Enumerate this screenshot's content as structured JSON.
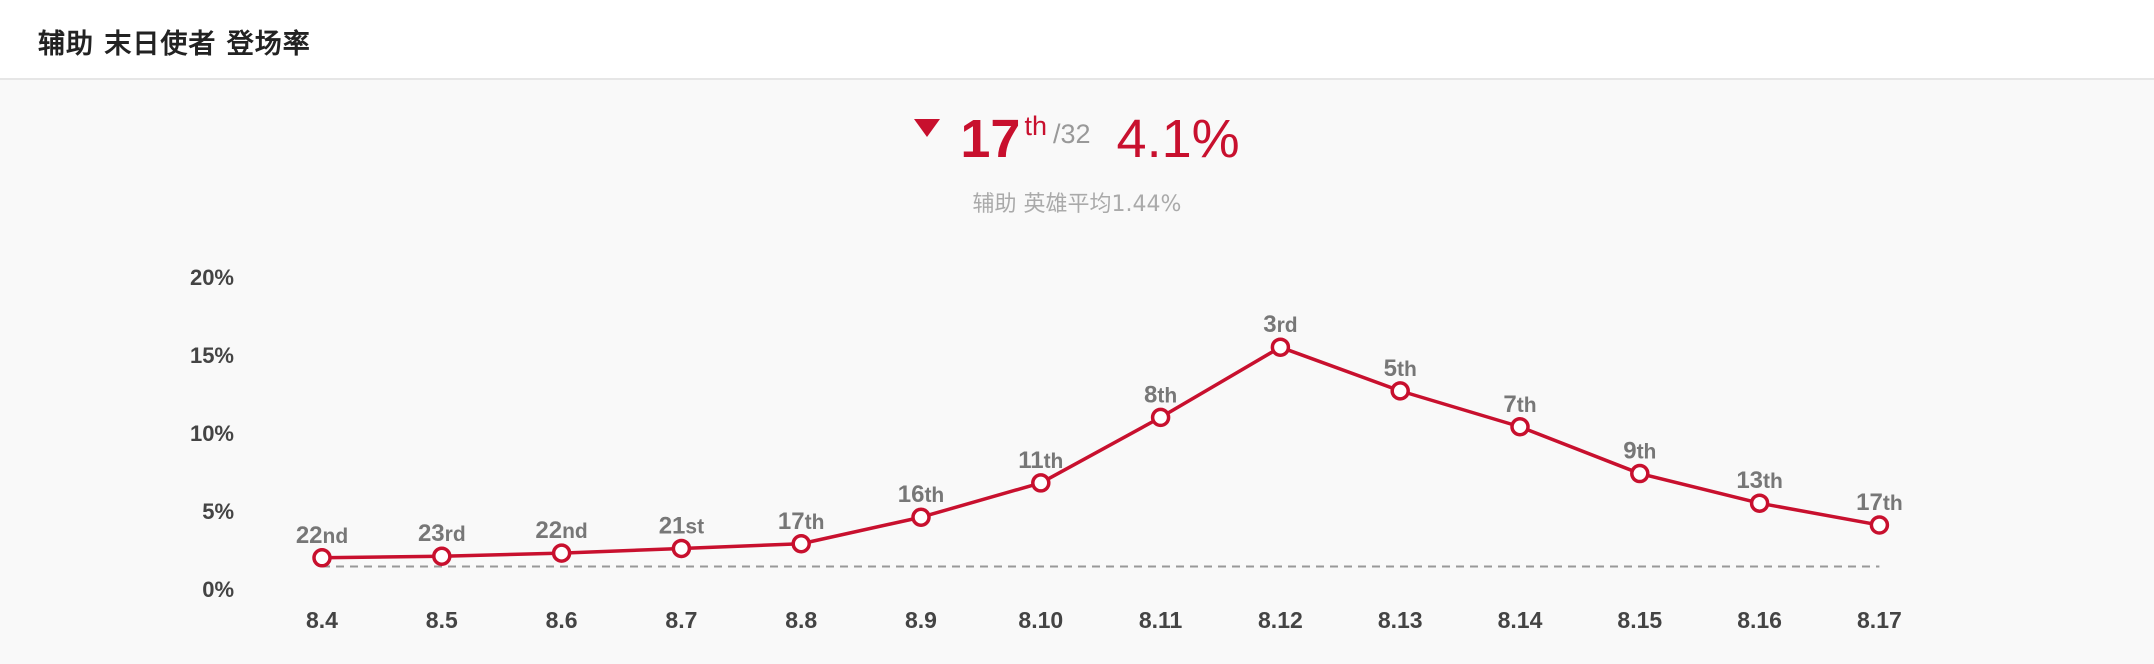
{
  "header": {
    "title": "辅助 末日使者 登场率"
  },
  "summary": {
    "trend_icon": "down-triangle-icon",
    "rank": "17",
    "rank_suffix": "th",
    "rank_total": "/32",
    "rate": "4.1%",
    "average_text": "辅助 英雄平均1.44%"
  },
  "colors": {
    "accent": "#c8102e",
    "avg_line": "#999999",
    "label": "#777777"
  },
  "chart_data": {
    "type": "line",
    "title": "",
    "xlabel": "",
    "ylabel": "",
    "categories": [
      "8.4",
      "8.5",
      "8.6",
      "8.7",
      "8.8",
      "8.9",
      "8.10",
      "8.11",
      "8.12",
      "8.13",
      "8.14",
      "8.15",
      "8.16",
      "8.17"
    ],
    "ylim": [
      0,
      20
    ],
    "yticks": [
      {
        "value": 0,
        "label": "0%"
      },
      {
        "value": 5,
        "label": "5%"
      },
      {
        "value": 10,
        "label": "10%"
      },
      {
        "value": 15,
        "label": "15%"
      },
      {
        "value": 20,
        "label": "20%"
      }
    ],
    "grid": false,
    "legend": false,
    "average": 1.44,
    "series": [
      {
        "values": [
          2.0,
          2.1,
          2.3,
          2.6,
          2.9,
          4.6,
          6.8,
          11.0,
          15.5,
          12.7,
          10.4,
          7.4,
          5.5,
          4.1
        ],
        "labels": [
          {
            "num": "22",
            "suffix": "nd"
          },
          {
            "num": "23",
            "suffix": "rd"
          },
          {
            "num": "22",
            "suffix": "nd"
          },
          {
            "num": "21",
            "suffix": "st"
          },
          {
            "num": "17",
            "suffix": "th"
          },
          {
            "num": "16",
            "suffix": "th"
          },
          {
            "num": "11",
            "suffix": "th"
          },
          {
            "num": "8",
            "suffix": "th"
          },
          {
            "num": "3",
            "suffix": "rd"
          },
          {
            "num": "5",
            "suffix": "th"
          },
          {
            "num": "7",
            "suffix": "th"
          },
          {
            "num": "9",
            "suffix": "th"
          },
          {
            "num": "13",
            "suffix": "th"
          },
          {
            "num": "17",
            "suffix": "th"
          }
        ]
      }
    ]
  }
}
